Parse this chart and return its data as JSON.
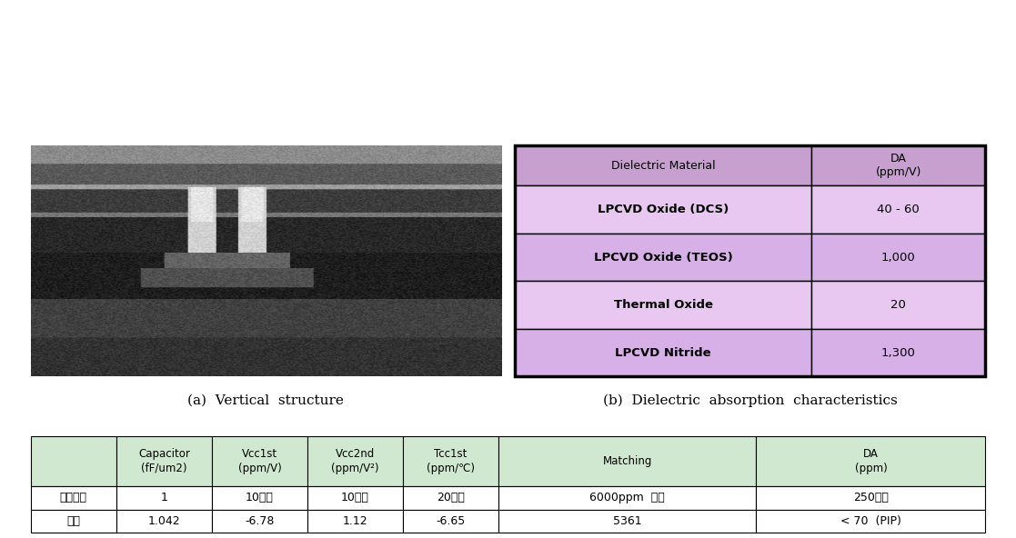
{
  "caption_a": "(a)  Vertical  structure",
  "caption_b": "(b)  Dielectric  absorption  characteristics",
  "dielectric_table": {
    "header": [
      "Dielectric Material",
      "DA\n(ppm/V)"
    ],
    "rows": [
      [
        "LPCVD Oxide (DCS)",
        "40 - 60"
      ],
      [
        "LPCVD Oxide (TEOS)",
        "1,000"
      ],
      [
        "Thermal Oxide",
        "20"
      ],
      [
        "LPCVD Nitride",
        "1,300"
      ]
    ],
    "header_color": "#c8a0d0",
    "row_colors": [
      "#e8c8f0",
      "#d8b0e8",
      "#e8c8f0",
      "#d8b0e8"
    ],
    "border_color": "#000000"
  },
  "bottom_table": {
    "col_headers": [
      "",
      "Capacitor\n(fF/um2)",
      "Vcc1st\n(ppm/V)",
      "Vcc2nd\n(ppm/V²)",
      "Tcc1st\n(ppm/℃)",
      "Matching",
      "DA\n(ppm)"
    ],
    "rows": [
      [
        "개발사양",
        "1",
        "10이하",
        "10이하",
        "20이하",
        "6000ppm  이하",
        "250이하"
      ],
      [
        "최종",
        "1.042",
        "-6.78",
        "1.12",
        "-6.65",
        "5361",
        "< 70  (PIP)"
      ]
    ],
    "header_color": "#d0e8d0",
    "border_color": "#000000"
  },
  "bg_color": "#ffffff",
  "caption_fontsize": 11,
  "table_fontsize": 9
}
